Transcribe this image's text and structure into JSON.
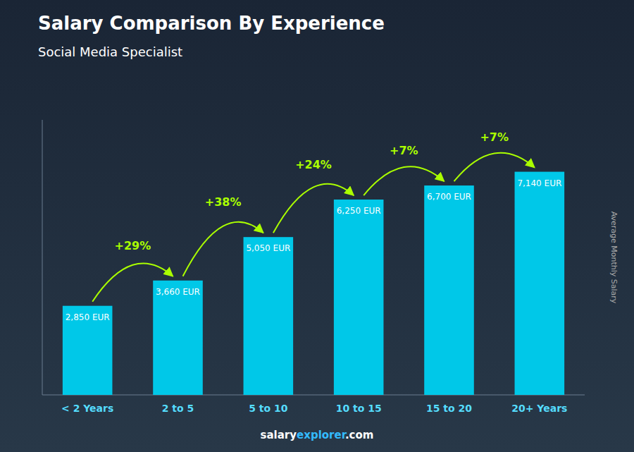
{
  "chart_data": {
    "type": "bar",
    "title": "Salary Comparison By Experience",
    "subtitle": "Social Media Specialist",
    "ylabel": "Average Monthly Salary",
    "categories": [
      "< 2 Years",
      "2 to 5",
      "5 to 10",
      "10 to 15",
      "15 to 20",
      "20+ Years"
    ],
    "values": [
      2850,
      3660,
      5050,
      6250,
      6700,
      7140
    ],
    "value_labels": [
      "2,850 EUR",
      "3,660 EUR",
      "5,050 EUR",
      "6,250 EUR",
      "6,700 EUR",
      "7,140 EUR"
    ],
    "data_labels": true,
    "annotations": [
      null,
      "+29%",
      "+38%",
      "+24%",
      "+7%",
      "+7%"
    ],
    "footer": [
      "salary",
      "explorer",
      ".com"
    ],
    "color": "#00c8e8",
    "ylim": [
      0,
      8800
    ],
    "tick_labels": "x",
    "grid": false
  }
}
